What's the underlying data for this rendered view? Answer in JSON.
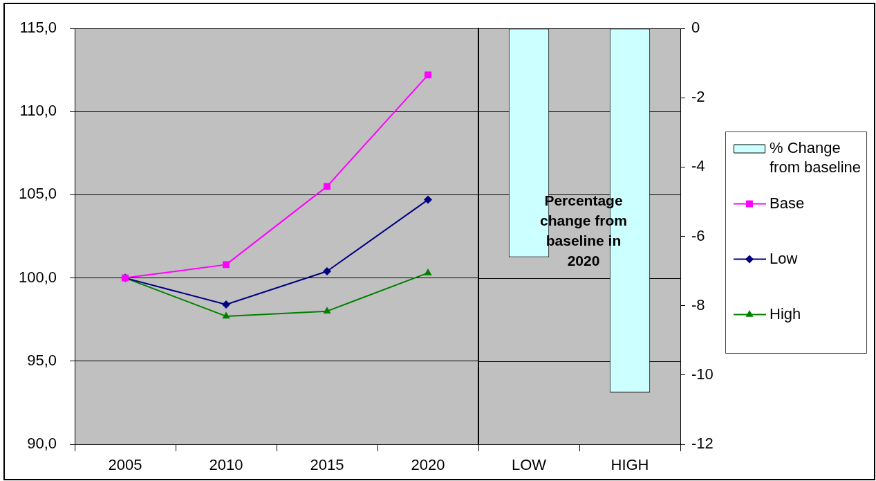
{
  "chart_data": [
    {
      "type": "line",
      "categories": [
        "2005",
        "2010",
        "2015",
        "2020"
      ],
      "series": [
        {
          "name": "Base",
          "color": "#ff00ff",
          "marker": "square",
          "values": [
            100.0,
            100.8,
            105.5,
            112.2
          ]
        },
        {
          "name": "Low",
          "color": "#000080",
          "marker": "diamond",
          "values": [
            100.0,
            98.4,
            100.4,
            104.7
          ]
        },
        {
          "name": "High",
          "color": "#008000",
          "marker": "triangle",
          "values": [
            100.0,
            97.7,
            98.0,
            100.3
          ]
        }
      ],
      "ylim": [
        90,
        115
      ],
      "yticks": [
        {
          "value": 90,
          "label": "90,0"
        },
        {
          "value": 95,
          "label": "95,0"
        },
        {
          "value": 100,
          "label": "100,0"
        },
        {
          "value": 105,
          "label": "105,0"
        },
        {
          "value": 110,
          "label": "110,0"
        },
        {
          "value": 115,
          "label": "115,0"
        }
      ],
      "grid": "y",
      "legend": "right"
    },
    {
      "type": "bar",
      "categories": [
        "LOW",
        "HIGH"
      ],
      "series": [
        {
          "name": "% Change from baseline",
          "axis": "y2",
          "color": "#ccffff",
          "values": [
            -6.6,
            -10.5
          ]
        }
      ],
      "y2lim": [
        -12,
        0
      ],
      "y2ticks": [
        -12,
        -10,
        -8,
        -6,
        -4,
        -2,
        0
      ],
      "legend": "right",
      "annotations": [
        "Percentage change from baseline in 2020"
      ]
    }
  ]
}
